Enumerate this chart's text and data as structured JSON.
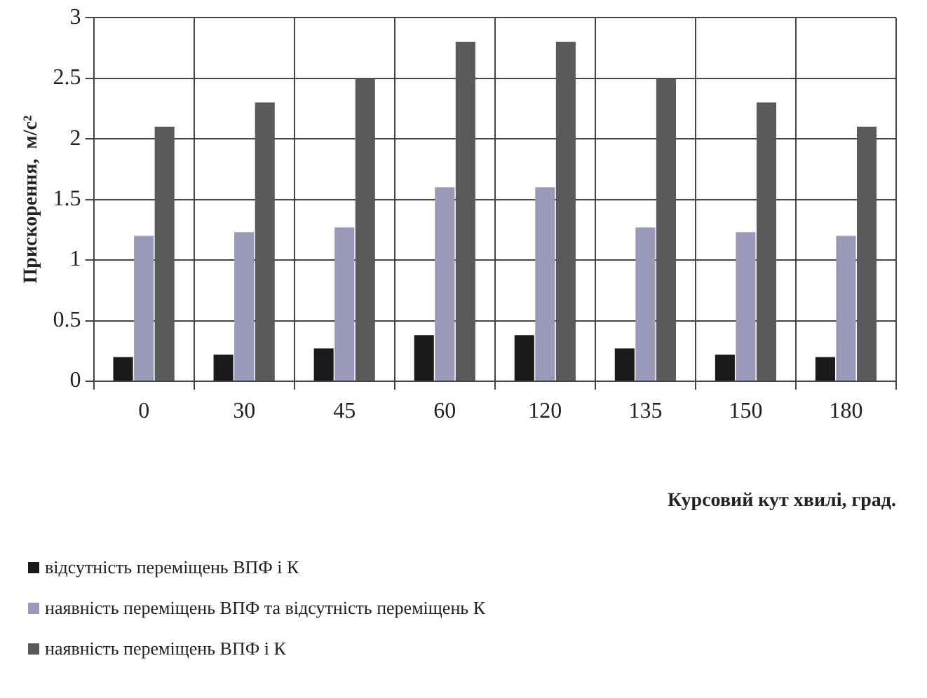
{
  "chart_data": {
    "type": "bar",
    "xlabel": "Курсовий кут хвилі, град.",
    "ylabel": "Прискорення,  м/с²",
    "categories": [
      "0",
      "30",
      "45",
      "60",
      "120",
      "135",
      "150",
      "180"
    ],
    "series": [
      {
        "name": "відсутність переміщень ВПФ і К",
        "color": "#1a1a1a",
        "values": [
          0.2,
          0.22,
          0.27,
          0.38,
          0.38,
          0.27,
          0.22,
          0.2
        ]
      },
      {
        "name": "наявність переміщень ВПФ та відсутність переміщень К",
        "color": "#9a9ab8",
        "values": [
          1.2,
          1.23,
          1.27,
          1.6,
          1.6,
          1.27,
          1.23,
          1.2
        ]
      },
      {
        "name": "наявність переміщень ВПФ і К",
        "color": "#5a5a5a",
        "values": [
          2.1,
          2.3,
          2.5,
          2.8,
          2.8,
          2.5,
          2.3,
          2.1
        ]
      }
    ],
    "ylim": [
      0,
      3
    ],
    "yticks": [
      0,
      0.5,
      1,
      1.5,
      2,
      2.5,
      3
    ],
    "grid": true,
    "legend": "bottom left"
  }
}
